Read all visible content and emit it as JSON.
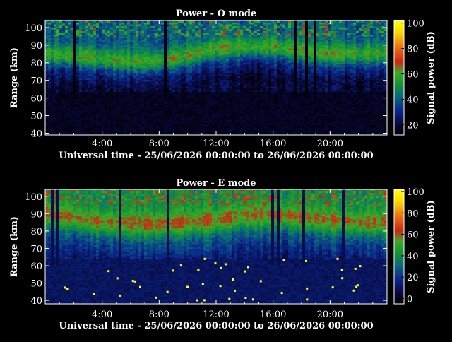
{
  "chart_data": [
    {
      "type": "heatmap",
      "title": "Power - O mode",
      "xlabel": "Universal time - 25/06/2026 00:00:00 to 26/06/2026 00:00:00",
      "ylabel": "Range (km)",
      "colorbar_label": "Signal power (dB)",
      "x_ticks": [
        "4:00",
        "8:00",
        "12:00",
        "16:00",
        "20:00"
      ],
      "y_ticks": [
        "40",
        "50",
        "60",
        "70",
        "80",
        "90",
        "100"
      ],
      "colorbar_ticks": [
        "20",
        "40",
        "60",
        "80",
        "100"
      ],
      "xlim_hours": [
        0,
        24
      ],
      "ylim_km": [
        39,
        104
      ],
      "clim_db": [
        12,
        102
      ],
      "colormap": "black-blue-green-red-yellow",
      "grid": false,
      "features": {
        "background_db_below_65km": 12,
        "strong_layer_center_km": [
          [
            0,
            85
          ],
          [
            2,
            84
          ],
          [
            4,
            82
          ],
          [
            6,
            81
          ],
          [
            8,
            81
          ],
          [
            10,
            84
          ],
          [
            12,
            88
          ],
          [
            14,
            89
          ],
          [
            16,
            89
          ],
          [
            18,
            87
          ],
          [
            20,
            85
          ],
          [
            22,
            85
          ],
          [
            24,
            85
          ]
        ],
        "strong_layer_peak_db": 60
      }
    },
    {
      "type": "heatmap",
      "title": "Power - E mode",
      "xlabel": "Universal time - 25/06/2026 00:00:00 to 26/06/2026 00:00:00",
      "ylabel": "Range (km)",
      "colorbar_label": "Signal power (dB)",
      "x_ticks": [
        "4:00",
        "8:00",
        "12:00",
        "16:00",
        "20:00"
      ],
      "y_ticks": [
        "40",
        "50",
        "60",
        "70",
        "80",
        "90",
        "100"
      ],
      "colorbar_ticks": [
        "0",
        "20",
        "40",
        "60",
        "80",
        "100"
      ],
      "xlim_hours": [
        0,
        24
      ],
      "ylim_km": [
        38,
        104
      ],
      "clim_db": [
        -5,
        102
      ],
      "colormap": "black-blue-green-red-yellow",
      "grid": false,
      "features": {
        "strong_layer_center_km": [
          [
            0,
            90
          ],
          [
            2,
            88
          ],
          [
            4,
            85
          ],
          [
            8,
            84
          ],
          [
            12,
            86
          ],
          [
            14,
            89
          ],
          [
            16,
            89
          ],
          [
            18,
            88
          ],
          [
            20,
            86
          ],
          [
            22,
            85
          ],
          [
            24,
            85
          ]
        ],
        "strong_layer_peak_db": 60
      }
    }
  ]
}
